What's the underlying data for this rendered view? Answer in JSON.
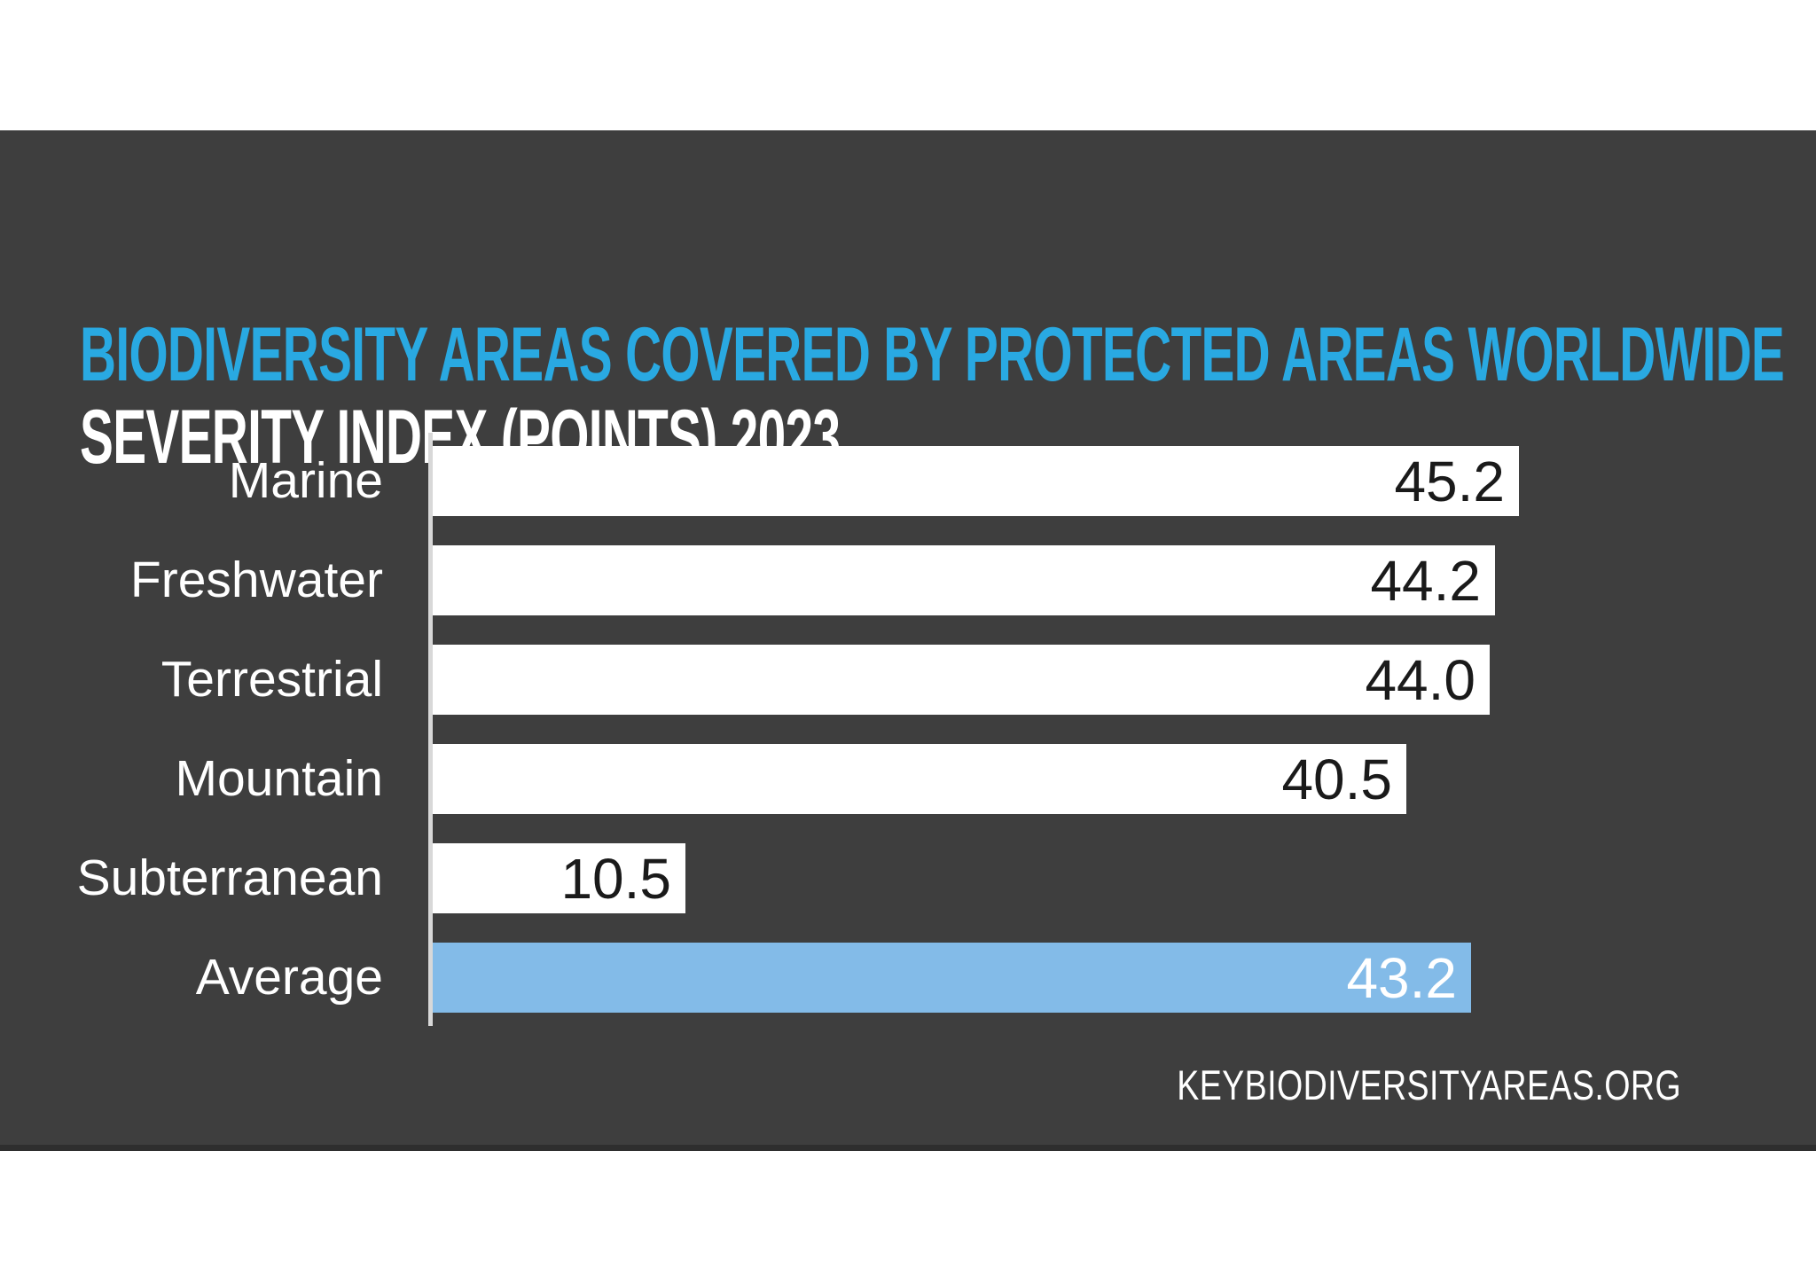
{
  "page": {
    "background": "#ffffff"
  },
  "panel": {
    "background": "#3e3e3e",
    "bottom_edge": "#2e2e2e"
  },
  "title": {
    "text": "BIODIVERSITY AREAS COVERED BY PROTECTED AREAS WORLDWIDE",
    "color": "#29a9e2"
  },
  "subtitle": {
    "text": "SEVERITY INDEX (POINTS) 2023",
    "color": "#ffffff"
  },
  "footer": {
    "text": "KEYBIODIVERSITYAREAS.ORG",
    "color": "#ffffff"
  },
  "chart_data": {
    "type": "bar",
    "orientation": "horizontal",
    "title": "BIODIVERSITY AREAS COVERED BY PROTECTED AREAS WORLDWIDE",
    "subtitle": "SEVERITY INDEX (POINTS) 2023",
    "categories": [
      "Marine",
      "Freshwater",
      "Terrestrial",
      "Mountain",
      "Subterranean",
      "Average"
    ],
    "values": [
      45.2,
      44.2,
      44.0,
      40.5,
      10.5,
      43.2
    ],
    "value_labels": [
      "45.2",
      "44.2",
      "44.0",
      "40.5",
      "10.5",
      "43.2"
    ],
    "highlight_category": "Average",
    "bar_color_default": "#ffffff",
    "bar_color_highlight": "#83bbe8",
    "value_color_default": "#1a1a1a",
    "value_color_highlight": "#ffffff",
    "label_color": "#ffffff",
    "axis_line_color": "#d8d8d8",
    "grid": false,
    "legend": false,
    "value_labels_position": "inside-end"
  }
}
